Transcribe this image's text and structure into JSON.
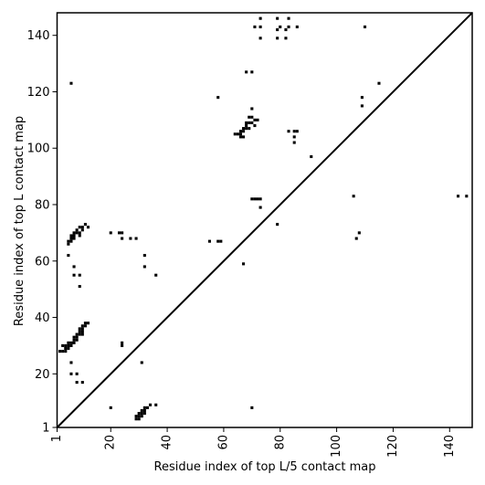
{
  "chart_data": {
    "type": "scatter",
    "subtype": "contact-map",
    "xlabel": "Residue index of top L/5 contact map",
    "ylabel": "Residue index of top L contact map",
    "xlim": [
      1,
      148
    ],
    "ylim": [
      1,
      148
    ],
    "x_ticks": [
      1,
      20,
      40,
      60,
      80,
      100,
      120,
      140
    ],
    "y_ticks": [
      1,
      20,
      40,
      60,
      80,
      100,
      120,
      140
    ],
    "x_tick_rotation": -90,
    "grid": false,
    "legend": "none",
    "diagonal_line": true,
    "marker": "square",
    "marker_color": "#000000",
    "points": [
      [
        6,
        123
      ],
      [
        73,
        146
      ],
      [
        79,
        146
      ],
      [
        83,
        146
      ],
      [
        71,
        143
      ],
      [
        73,
        143
      ],
      [
        79,
        142
      ],
      [
        80,
        143
      ],
      [
        82,
        142
      ],
      [
        83,
        143
      ],
      [
        86,
        143
      ],
      [
        110,
        143
      ],
      [
        73,
        139
      ],
      [
        79,
        139
      ],
      [
        82,
        139
      ],
      [
        68,
        127
      ],
      [
        70,
        127
      ],
      [
        115,
        123
      ],
      [
        58,
        118
      ],
      [
        109,
        118
      ],
      [
        109,
        115
      ],
      [
        70,
        114
      ],
      [
        69,
        111
      ],
      [
        70,
        111
      ],
      [
        71,
        110
      ],
      [
        72,
        110
      ],
      [
        68,
        109
      ],
      [
        69,
        109
      ],
      [
        70,
        109
      ],
      [
        71,
        108
      ],
      [
        68,
        108
      ],
      [
        67,
        107
      ],
      [
        68,
        107
      ],
      [
        69,
        107
      ],
      [
        66,
        106
      ],
      [
        67,
        106
      ],
      [
        65,
        105
      ],
      [
        66,
        105
      ],
      [
        67,
        104
      ],
      [
        66,
        104
      ],
      [
        64,
        105
      ],
      [
        83,
        106
      ],
      [
        85,
        106
      ],
      [
        86,
        106
      ],
      [
        85,
        104
      ],
      [
        85,
        102
      ],
      [
        91,
        97
      ],
      [
        106,
        83
      ],
      [
        143,
        83
      ],
      [
        146,
        83
      ],
      [
        70,
        82
      ],
      [
        71,
        82
      ],
      [
        72,
        82
      ],
      [
        73,
        82
      ],
      [
        73,
        79
      ],
      [
        79,
        73
      ],
      [
        11,
        73
      ],
      [
        12,
        72
      ],
      [
        9,
        72
      ],
      [
        10,
        72
      ],
      [
        10,
        71
      ],
      [
        8,
        71
      ],
      [
        9,
        70
      ],
      [
        7,
        70
      ],
      [
        8,
        70
      ],
      [
        20,
        70
      ],
      [
        23,
        70
      ],
      [
        24,
        70
      ],
      [
        6,
        69
      ],
      [
        7,
        69
      ],
      [
        9,
        69
      ],
      [
        6,
        68
      ],
      [
        7,
        68
      ],
      [
        24,
        68
      ],
      [
        27,
        68
      ],
      [
        29,
        68
      ],
      [
        5,
        67
      ],
      [
        6,
        67
      ],
      [
        55,
        67
      ],
      [
        58,
        67
      ],
      [
        59,
        67
      ],
      [
        5,
        66
      ],
      [
        32,
        62
      ],
      [
        5,
        62
      ],
      [
        32,
        58
      ],
      [
        7,
        58
      ],
      [
        7,
        55
      ],
      [
        9,
        55
      ],
      [
        36,
        55
      ],
      [
        9,
        51
      ],
      [
        67,
        59
      ],
      [
        108,
        70
      ],
      [
        107,
        68
      ],
      [
        11,
        38
      ],
      [
        12,
        38
      ],
      [
        10,
        37
      ],
      [
        11,
        37
      ],
      [
        9,
        36
      ],
      [
        10,
        36
      ],
      [
        9,
        35
      ],
      [
        10,
        35
      ],
      [
        8,
        34
      ],
      [
        9,
        34
      ],
      [
        10,
        34
      ],
      [
        7,
        33
      ],
      [
        8,
        33
      ],
      [
        7,
        32
      ],
      [
        8,
        32
      ],
      [
        6,
        31
      ],
      [
        7,
        31
      ],
      [
        5,
        31
      ],
      [
        24,
        31
      ],
      [
        24,
        30
      ],
      [
        6,
        30
      ],
      [
        5,
        30
      ],
      [
        4,
        30
      ],
      [
        3,
        30
      ],
      [
        4,
        29
      ],
      [
        5,
        29
      ],
      [
        2,
        28
      ],
      [
        3,
        28
      ],
      [
        4,
        28
      ],
      [
        6,
        24
      ],
      [
        31,
        24
      ],
      [
        6,
        20
      ],
      [
        8,
        20
      ],
      [
        8,
        17
      ],
      [
        10,
        17
      ],
      [
        20,
        8
      ],
      [
        36,
        9
      ],
      [
        34,
        9
      ],
      [
        33,
        8
      ],
      [
        32,
        8
      ],
      [
        31,
        7
      ],
      [
        32,
        7
      ],
      [
        30,
        6
      ],
      [
        31,
        6
      ],
      [
        32,
        6
      ],
      [
        29,
        5
      ],
      [
        30,
        5
      ],
      [
        31,
        5
      ],
      [
        29,
        4
      ],
      [
        30,
        4
      ],
      [
        70,
        8
      ]
    ]
  }
}
